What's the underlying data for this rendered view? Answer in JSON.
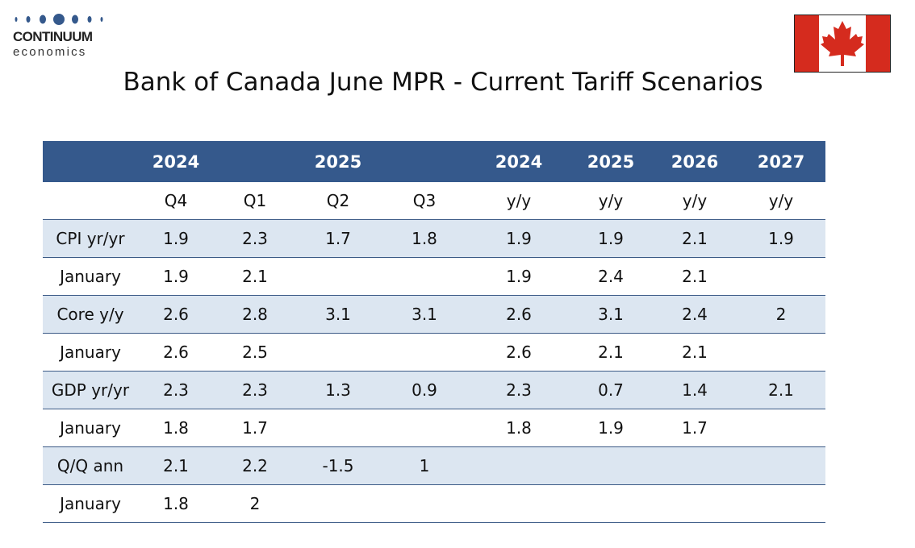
{
  "logo": {
    "brand": "CONTINUUM",
    "sub": "economics"
  },
  "flag": {
    "name": "canada-flag",
    "colors": {
      "red": "#d52b1e",
      "white": "#ffffff"
    }
  },
  "title": "Bank of Canada June MPR - Current Tariff Scenarios",
  "colors": {
    "header_bg": "#35598c",
    "shade_row": "#dce6f1",
    "rule": "#3b5a86"
  },
  "table": {
    "year_header": [
      "",
      "2024",
      "",
      "2025",
      "",
      "2024",
      "2025",
      "2026",
      "2027"
    ],
    "sub_header": [
      "",
      "Q4",
      "Q1",
      "Q2",
      "Q3",
      "y/y",
      "y/y",
      "y/y",
      "y/y"
    ],
    "rows": [
      {
        "label": "CPI yr/yr",
        "values": [
          "1.9",
          "2.3",
          "1.7",
          "1.8",
          "1.9",
          "1.9",
          "2.1",
          "1.9"
        ]
      },
      {
        "label": "January",
        "values": [
          "1.9",
          "2.1",
          "",
          "",
          "1.9",
          "2.4",
          "2.1",
          ""
        ]
      },
      {
        "label": "Core y/y",
        "values": [
          "2.6",
          "2.8",
          "3.1",
          "3.1",
          "2.6",
          "3.1",
          "2.4",
          "2"
        ]
      },
      {
        "label": "January",
        "values": [
          "2.6",
          "2.5",
          "",
          "",
          "2.6",
          "2.1",
          "2.1",
          ""
        ]
      },
      {
        "label": "GDP yr/yr",
        "values": [
          "2.3",
          "2.3",
          "1.3",
          "0.9",
          "2.3",
          "0.7",
          "1.4",
          "2.1"
        ]
      },
      {
        "label": "January",
        "values": [
          "1.8",
          "1.7",
          "",
          "",
          "1.8",
          "1.9",
          "1.7",
          ""
        ]
      },
      {
        "label": "Q/Q ann",
        "values": [
          "2.1",
          "2.2",
          "-1.5",
          "1",
          "",
          "",
          "",
          ""
        ]
      },
      {
        "label": "January",
        "values": [
          "1.8",
          "2",
          "",
          "",
          "",
          "",
          "",
          ""
        ]
      }
    ]
  }
}
